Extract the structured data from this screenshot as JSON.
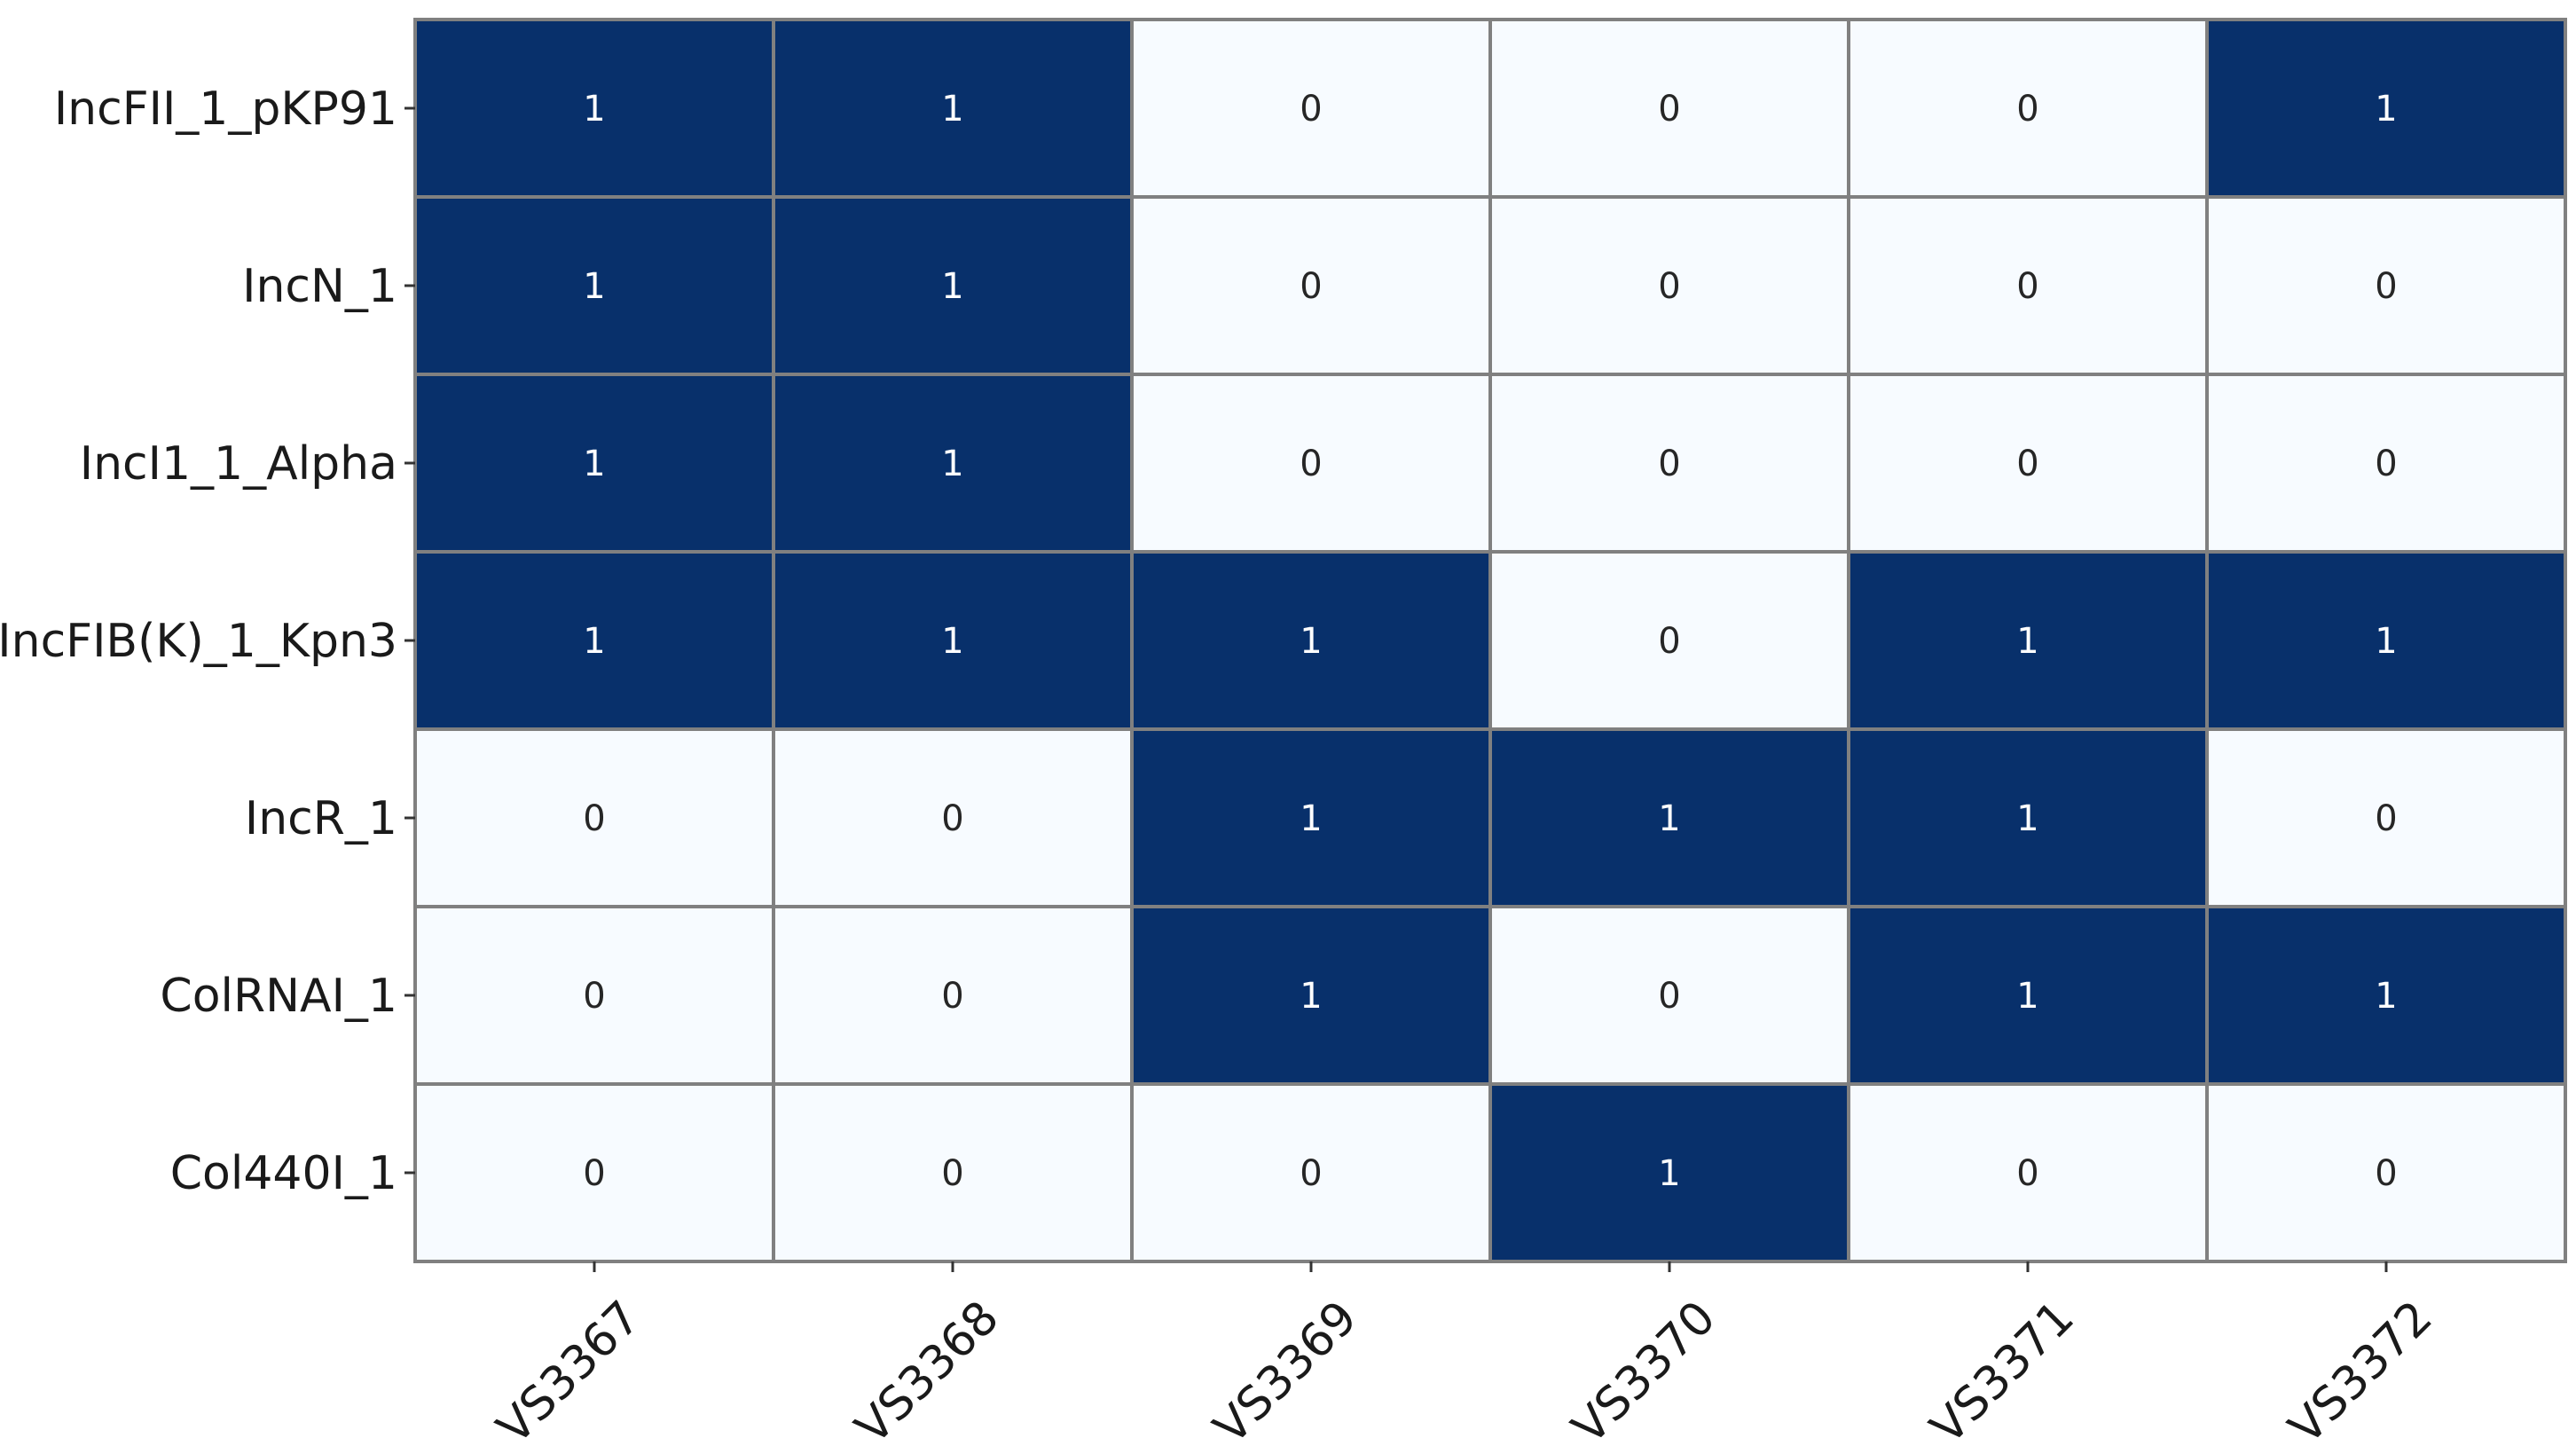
{
  "chart_data": {
    "type": "heatmap",
    "title": "",
    "xlabel": "",
    "ylabel": "",
    "x_categories": [
      "VS3367",
      "VS3368",
      "VS3369",
      "VS3370",
      "VS3371",
      "VS3372"
    ],
    "y_categories": [
      "IncFII_1_pKP91",
      "IncN_1",
      "IncI1_1_Alpha",
      "IncFIB(K)_1_Kpn3",
      "IncR_1",
      "ColRNAI_1",
      "Col440I_1"
    ],
    "values": [
      [
        1,
        1,
        0,
        0,
        0,
        1
      ],
      [
        1,
        1,
        0,
        0,
        0,
        0
      ],
      [
        1,
        1,
        0,
        0,
        0,
        0
      ],
      [
        1,
        1,
        1,
        0,
        1,
        1
      ],
      [
        0,
        0,
        1,
        1,
        1,
        0
      ],
      [
        0,
        0,
        1,
        0,
        1,
        1
      ],
      [
        0,
        0,
        0,
        1,
        0,
        0
      ]
    ],
    "annotated": true,
    "colorbar": false,
    "colors": {
      "high": "#08306b",
      "low": "#f7fbff",
      "text_on_high": "#ffffff",
      "text_on_low": "#262626",
      "grid": "#808080"
    }
  }
}
